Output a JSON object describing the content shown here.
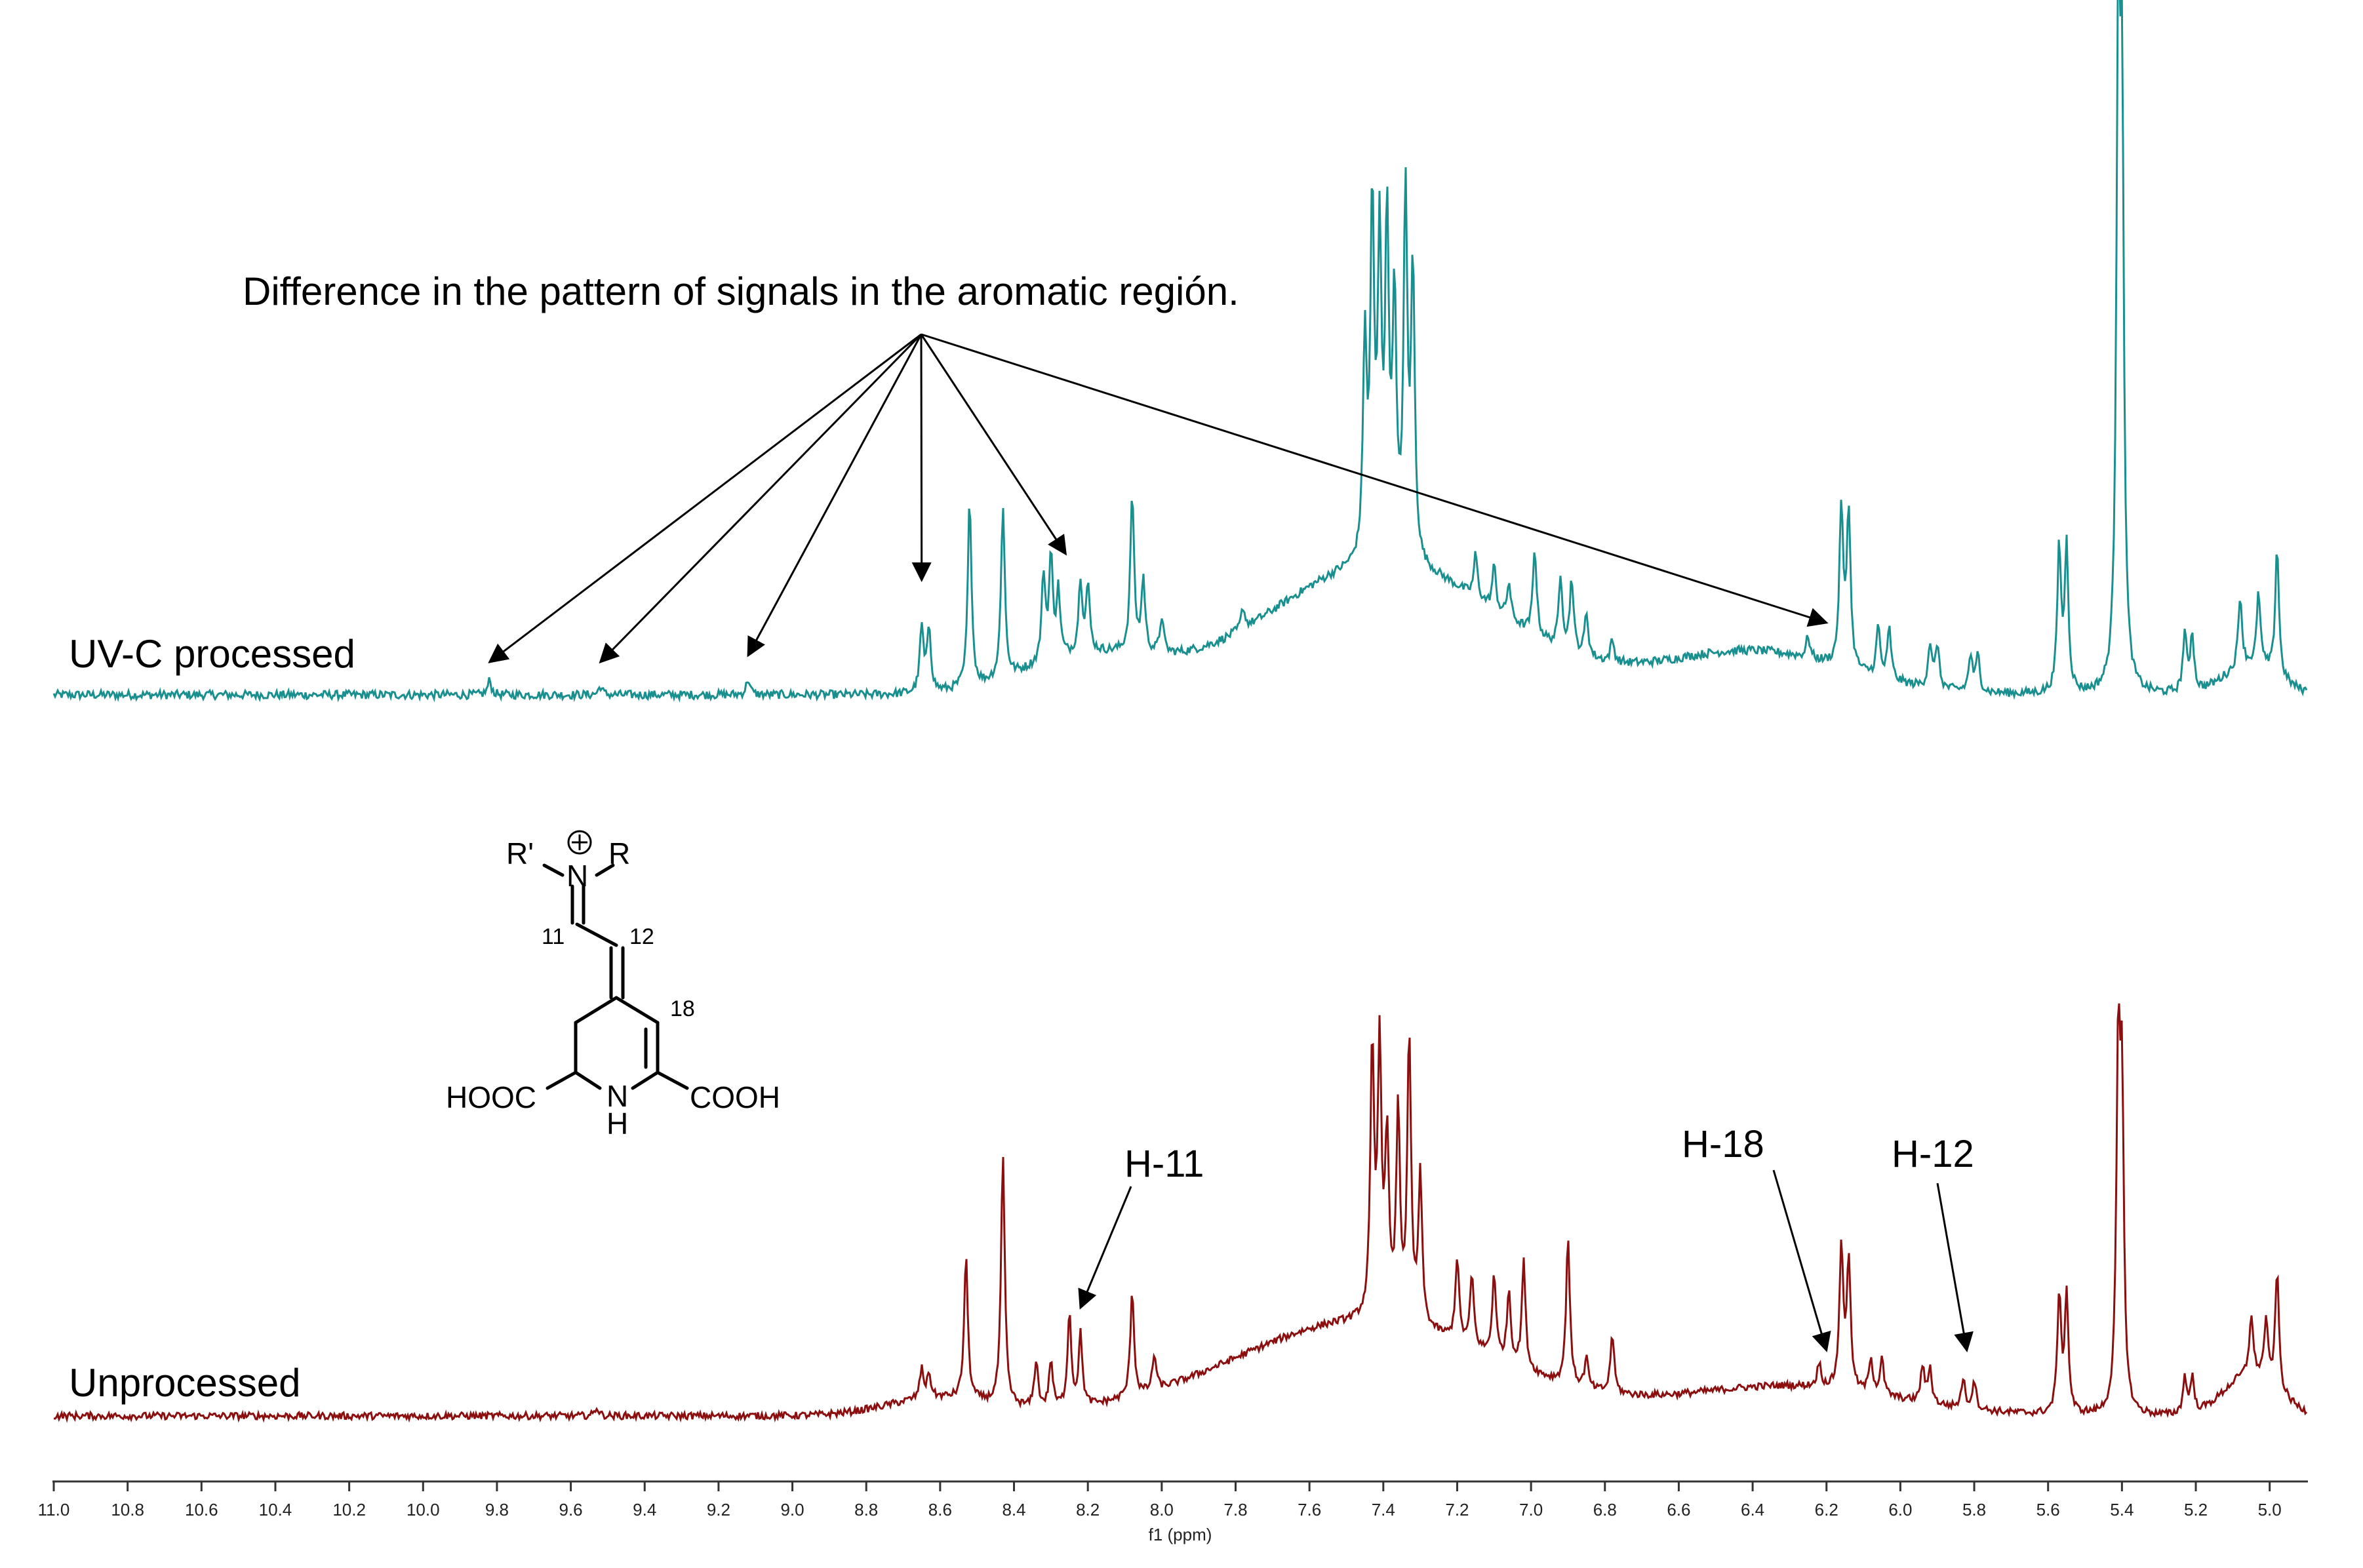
{
  "chart_data": {
    "type": "line",
    "xlabel": "f1 (ppm)",
    "xlim": [
      11.0,
      4.9
    ],
    "x_reversed": true,
    "x_ticks": [
      "11.0",
      "10.8",
      "10.6",
      "10.4",
      "10.2",
      "10.0",
      "9.8",
      "9.6",
      "9.4",
      "9.2",
      "9.0",
      "8.8",
      "8.6",
      "8.4",
      "8.2",
      "8.0",
      "7.8",
      "7.6",
      "7.4",
      "7.2",
      "7.0",
      "6.8",
      "6.6",
      "6.4",
      "6.2",
      "6.0",
      "5.8",
      "5.6",
      "5.4",
      "5.2",
      "5.0"
    ],
    "grid": false,
    "legend": "none",
    "series": [
      {
        "name": "UV-C processed",
        "color": "#1a8f8f",
        "peaks": [
          {
            "ppm": 9.82,
            "h": 0.02
          },
          {
            "ppm": 9.52,
            "h": 0.012
          },
          {
            "ppm": 9.12,
            "h": 0.022
          },
          {
            "ppm": 8.65,
            "h": 0.09
          },
          {
            "ppm": 8.63,
            "h": 0.09
          },
          {
            "ppm": 8.52,
            "h": 0.26
          },
          {
            "ppm": 8.43,
            "h": 0.24
          },
          {
            "ppm": 8.32,
            "h": 0.12
          },
          {
            "ppm": 8.3,
            "h": 0.14
          },
          {
            "ppm": 8.28,
            "h": 0.09
          },
          {
            "ppm": 8.22,
            "h": 0.1
          },
          {
            "ppm": 8.2,
            "h": 0.09
          },
          {
            "ppm": 8.08,
            "h": 0.22
          },
          {
            "ppm": 8.05,
            "h": 0.1
          },
          {
            "ppm": 8.0,
            "h": 0.05
          },
          {
            "ppm": 7.78,
            "h": 0.03
          },
          {
            "ppm": 7.45,
            "h": 0.3
          },
          {
            "ppm": 7.43,
            "h": 0.48
          },
          {
            "ppm": 7.41,
            "h": 0.42
          },
          {
            "ppm": 7.39,
            "h": 0.45
          },
          {
            "ppm": 7.37,
            "h": 0.35
          },
          {
            "ppm": 7.34,
            "h": 0.5
          },
          {
            "ppm": 7.32,
            "h": 0.4
          },
          {
            "ppm": 7.15,
            "h": 0.06
          },
          {
            "ppm": 7.1,
            "h": 0.06
          },
          {
            "ppm": 7.06,
            "h": 0.05
          },
          {
            "ppm": 6.99,
            "h": 0.12
          },
          {
            "ppm": 6.92,
            "h": 0.1
          },
          {
            "ppm": 6.89,
            "h": 0.1
          },
          {
            "ppm": 6.85,
            "h": 0.06
          },
          {
            "ppm": 6.78,
            "h": 0.03
          },
          {
            "ppm": 6.25,
            "h": 0.03
          },
          {
            "ppm": 6.16,
            "h": 0.22
          },
          {
            "ppm": 6.14,
            "h": 0.22
          },
          {
            "ppm": 6.06,
            "h": 0.07
          },
          {
            "ppm": 6.03,
            "h": 0.07
          },
          {
            "ppm": 5.92,
            "h": 0.06
          },
          {
            "ppm": 5.9,
            "h": 0.06
          },
          {
            "ppm": 5.81,
            "h": 0.05
          },
          {
            "ppm": 5.79,
            "h": 0.05
          },
          {
            "ppm": 5.57,
            "h": 0.2
          },
          {
            "ppm": 5.55,
            "h": 0.2
          },
          {
            "ppm": 5.41,
            "h": 0.85
          },
          {
            "ppm": 5.4,
            "h": 0.75
          },
          {
            "ppm": 5.23,
            "h": 0.08
          },
          {
            "ppm": 5.21,
            "h": 0.08
          },
          {
            "ppm": 5.08,
            "h": 0.1
          },
          {
            "ppm": 5.03,
            "h": 0.1
          },
          {
            "ppm": 4.98,
            "h": 0.18
          }
        ]
      },
      {
        "name": "Unprocessed",
        "color": "#8b0f0f",
        "peaks": [
          {
            "ppm": 9.53,
            "h": 0.015
          },
          {
            "ppm": 8.65,
            "h": 0.05
          },
          {
            "ppm": 8.63,
            "h": 0.04
          },
          {
            "ppm": 8.53,
            "h": 0.24
          },
          {
            "ppm": 8.43,
            "h": 0.42
          },
          {
            "ppm": 8.34,
            "h": 0.08
          },
          {
            "ppm": 8.3,
            "h": 0.08
          },
          {
            "ppm": 8.25,
            "h": 0.16
          },
          {
            "ppm": 8.22,
            "h": 0.12
          },
          {
            "ppm": 8.08,
            "h": 0.18
          },
          {
            "ppm": 8.02,
            "h": 0.06
          },
          {
            "ppm": 7.43,
            "h": 0.45
          },
          {
            "ppm": 7.41,
            "h": 0.45
          },
          {
            "ppm": 7.39,
            "h": 0.3
          },
          {
            "ppm": 7.36,
            "h": 0.35
          },
          {
            "ppm": 7.33,
            "h": 0.48
          },
          {
            "ppm": 7.3,
            "h": 0.25
          },
          {
            "ppm": 7.2,
            "h": 0.14
          },
          {
            "ppm": 7.16,
            "h": 0.12
          },
          {
            "ppm": 7.1,
            "h": 0.14
          },
          {
            "ppm": 7.06,
            "h": 0.12
          },
          {
            "ppm": 7.02,
            "h": 0.18
          },
          {
            "ppm": 6.9,
            "h": 0.25
          },
          {
            "ppm": 6.85,
            "h": 0.05
          },
          {
            "ppm": 6.78,
            "h": 0.1
          },
          {
            "ppm": 6.22,
            "h": 0.04
          },
          {
            "ppm": 6.16,
            "h": 0.24
          },
          {
            "ppm": 6.14,
            "h": 0.22
          },
          {
            "ppm": 6.08,
            "h": 0.06
          },
          {
            "ppm": 6.05,
            "h": 0.06
          },
          {
            "ppm": 5.94,
            "h": 0.06
          },
          {
            "ppm": 5.92,
            "h": 0.06
          },
          {
            "ppm": 5.83,
            "h": 0.05
          },
          {
            "ppm": 5.8,
            "h": 0.05
          },
          {
            "ppm": 5.57,
            "h": 0.2
          },
          {
            "ppm": 5.55,
            "h": 0.2
          },
          {
            "ppm": 5.41,
            "h": 0.58
          },
          {
            "ppm": 5.4,
            "h": 0.5
          },
          {
            "ppm": 5.23,
            "h": 0.06
          },
          {
            "ppm": 5.21,
            "h": 0.06
          },
          {
            "ppm": 5.05,
            "h": 0.1
          },
          {
            "ppm": 5.01,
            "h": 0.1
          },
          {
            "ppm": 4.98,
            "h": 0.2
          }
        ]
      }
    ],
    "series_labels": [
      "UV-C processed",
      "Unprocessed"
    ],
    "annotations": [
      {
        "text": "Difference in the pattern of signals in the aromatic región.",
        "targets_ppm": [
          9.82,
          9.52,
          9.12,
          8.65,
          8.26,
          6.2
        ]
      },
      {
        "text": "H-11",
        "target_ppm": 8.22
      },
      {
        "text": "H-18",
        "target_ppm": 6.2
      },
      {
        "text": "H-12",
        "target_ppm": 5.82
      }
    ],
    "structure_labels": {
      "r_prime": "R'",
      "n": "N",
      "r": "R",
      "c11": "11",
      "c12": "12",
      "c18": "18",
      "hooc": "HOOC",
      "cooh": "COOH",
      "nh_n": "N",
      "nh_h": "H"
    }
  }
}
